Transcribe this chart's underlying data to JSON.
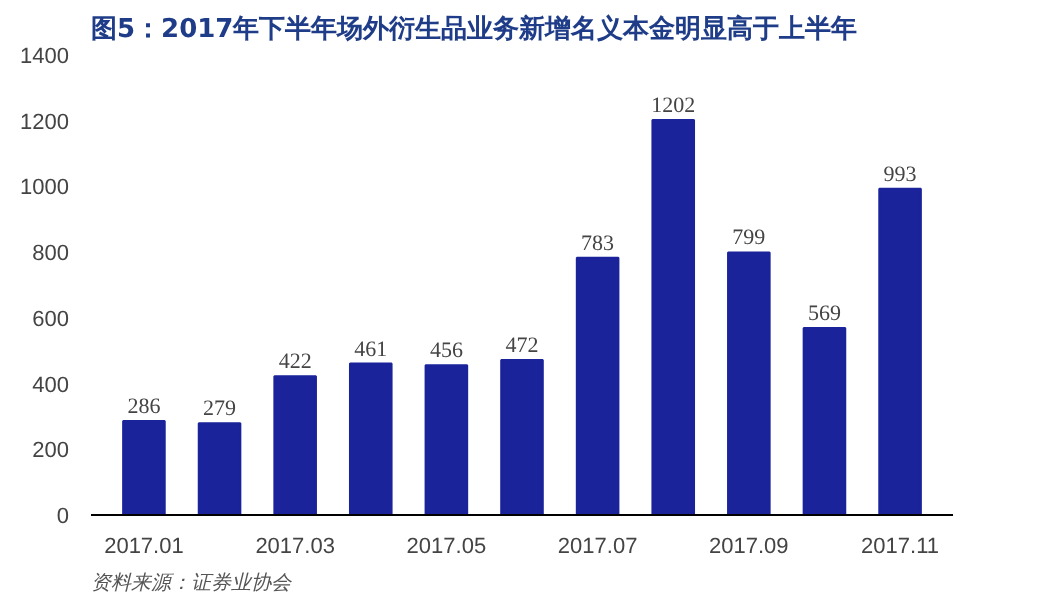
{
  "chart_data": {
    "type": "bar",
    "title": "图5：2017年下半年场外衍生品业务新增名义本金明显高于上半年",
    "categories": [
      "2017.01",
      null,
      "2017.03",
      null,
      "2017.05",
      null,
      "2017.07",
      null,
      "2017.09",
      null,
      "2017.11"
    ],
    "values": [
      286,
      279,
      422,
      461,
      456,
      472,
      783,
      1202,
      799,
      569,
      993
    ],
    "color": "#1a239a",
    "data_labels": true,
    "ylim": [
      0,
      1400
    ],
    "yticks": [
      0,
      200,
      400,
      600,
      800,
      1000,
      1200,
      1400
    ],
    "grid": false,
    "annotations": [
      "资料来源：证券业协会"
    ]
  }
}
